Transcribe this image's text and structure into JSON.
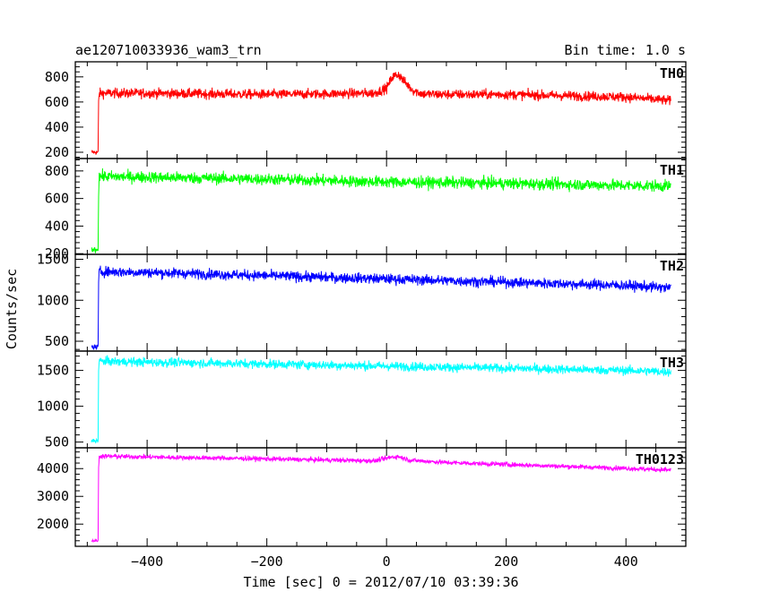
{
  "header": {
    "title": "ae120710033936_wam3_trn",
    "bin_time": "Bin time: 1.0 s"
  },
  "chart_data": {
    "type": "line",
    "xlabel": "Time [sec] 0 = 2012/07/10 03:39:36",
    "ylabel": "Counts/sec",
    "xlim": [
      -520,
      500
    ],
    "xticks": [
      -400,
      -200,
      0,
      200,
      400
    ],
    "xtick_labels": [
      "−400",
      "−200",
      "0",
      "200",
      "400"
    ],
    "grid": false,
    "panels": [
      {
        "name": "TH0",
        "color": "#ff0000",
        "ylim": [
          150,
          920
        ],
        "yticks": [
          200,
          400,
          600,
          800
        ],
        "ytick_labels": [
          "200",
          "400",
          "600",
          "800"
        ],
        "trend": {
          "x": [
            -493,
            -482,
            -481,
            -480,
            -400,
            -300,
            -200,
            -100,
            -20,
            0,
            10,
            20,
            30,
            45,
            60,
            100,
            200,
            300,
            400,
            475
          ],
          "y": [
            200,
            200,
            600,
            670,
            670,
            665,
            660,
            665,
            670,
            710,
            800,
            820,
            760,
            690,
            665,
            660,
            660,
            650,
            640,
            610
          ]
        },
        "noise": 28
      },
      {
        "name": "TH1",
        "color": "#00ff00",
        "ylim": [
          195,
          890
        ],
        "yticks": [
          200,
          400,
          600,
          800
        ],
        "ytick_labels": [
          "200",
          "400",
          "600",
          "800"
        ],
        "trend": {
          "x": [
            -493,
            -482,
            -481,
            -480,
            -400,
            -200,
            0,
            200,
            400,
            475
          ],
          "y": [
            230,
            230,
            650,
            760,
            755,
            740,
            720,
            710,
            695,
            690
          ]
        },
        "noise": 30
      },
      {
        "name": "TH2",
        "color": "#0000ff",
        "ylim": [
          380,
          1560
        ],
        "yticks": [
          500,
          1000,
          1500
        ],
        "ytick_labels": [
          "500",
          "1000",
          "1500"
        ],
        "trend": {
          "x": [
            -493,
            -482,
            -481,
            -480,
            -400,
            -200,
            0,
            200,
            400,
            475
          ],
          "y": [
            430,
            430,
            1200,
            1350,
            1340,
            1300,
            1260,
            1220,
            1180,
            1150
          ]
        },
        "noise": 45
      },
      {
        "name": "TH3",
        "color": "#00ffff",
        "ylim": [
          420,
          1770
        ],
        "yticks": [
          500,
          1000,
          1500
        ],
        "ytick_labels": [
          "500",
          "1000",
          "1500"
        ],
        "trend": {
          "x": [
            -493,
            -482,
            -481,
            -480,
            -400,
            -200,
            0,
            200,
            400,
            475
          ],
          "y": [
            520,
            520,
            1500,
            1630,
            1615,
            1590,
            1560,
            1530,
            1500,
            1480
          ]
        },
        "noise": 45
      },
      {
        "name": "TH0123",
        "color": "#ff00ff",
        "ylim": [
          1200,
          4750
        ],
        "yticks": [
          2000,
          3000,
          4000
        ],
        "ytick_labels": [
          "2000",
          "3000",
          "4000"
        ],
        "trend": {
          "x": [
            -493,
            -482,
            -481,
            -480,
            -400,
            -200,
            -20,
            10,
            20,
            40,
            100,
            200,
            400,
            475
          ],
          "y": [
            1400,
            1400,
            4000,
            4450,
            4420,
            4350,
            4280,
            4420,
            4430,
            4300,
            4220,
            4150,
            4010,
            3950
          ]
        },
        "noise": 60
      }
    ]
  }
}
